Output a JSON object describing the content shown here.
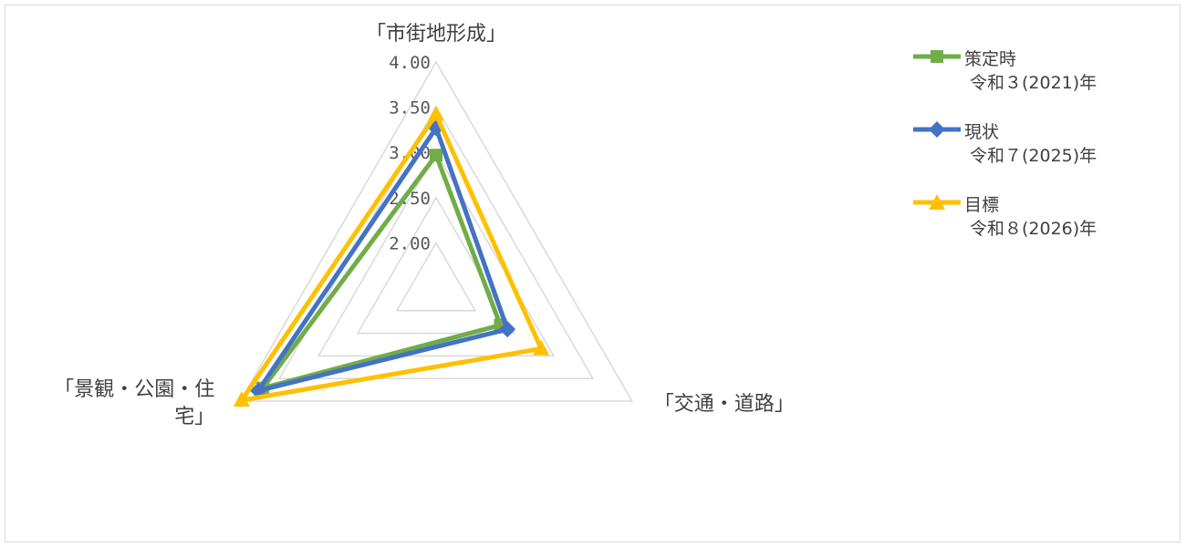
{
  "chart_data": {
    "type": "radar",
    "axes": [
      "「市街地形成」",
      "「交通・道路」",
      "「景観・公園・住宅」"
    ],
    "axis_label_lines": [
      [
        "「市街地形成」"
      ],
      [
        "「交通・道路」"
      ],
      [
        "「景観・公園・住",
        "宅」"
      ]
    ],
    "r_ticks": [
      "2.00",
      "2.50",
      "3.00",
      "3.50",
      "4.00"
    ],
    "rlim": [
      1.5,
      4.0
    ],
    "grid": true,
    "legend_position": "right",
    "series": [
      {
        "name": "策定時",
        "subtitle": "令和３(2021)年",
        "values": [
          2.97,
          2.32,
          3.71
        ],
        "color": "#70ad47",
        "marker": "square"
      },
      {
        "name": "現状",
        "subtitle": "令和７(2025)年",
        "values": [
          3.27,
          2.41,
          3.77
        ],
        "color": "#4472c4",
        "marker": "diamond"
      },
      {
        "name": "目標",
        "subtitle": "令和８(2026)年",
        "values": [
          3.42,
          2.84,
          3.98
        ],
        "color": "#ffc000",
        "marker": "triangle"
      }
    ]
  }
}
